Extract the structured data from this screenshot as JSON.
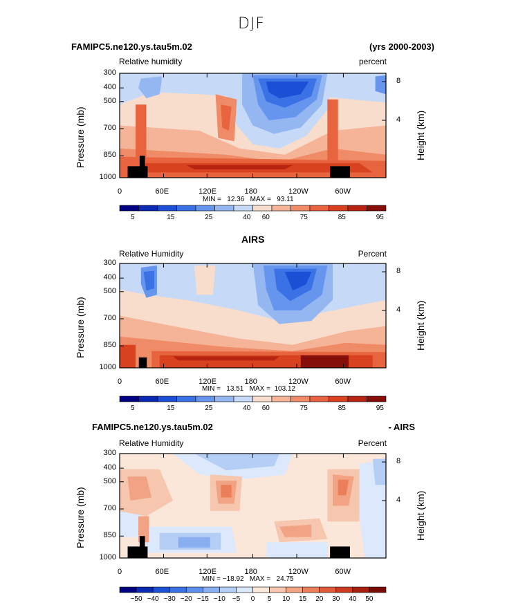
{
  "figure": {
    "title": "DJF",
    "season": "DJF"
  },
  "colors": {
    "levels": [
      "#000082",
      "#0a2ab4",
      "#1a4fd6",
      "#3a72e6",
      "#6695ee",
      "#94b7f2",
      "#c6daf8",
      "#f8dccc",
      "#f5b497",
      "#ef8c67",
      "#e8643e",
      "#d9421e",
      "#b72512",
      "#850e08"
    ],
    "diff_levels": [
      "#000082",
      "#0a2ab4",
      "#1a4fd6",
      "#3a72e6",
      "#5f8fed",
      "#8aaff1",
      "#b5cef6",
      "#dce8fb",
      "#fbe6da",
      "#f7c6ae",
      "#f2a383",
      "#ec7f5b",
      "#e25b39",
      "#cd3a20",
      "#a81f10",
      "#7a0c06"
    ]
  },
  "panels": [
    {
      "title_left": "FAMIPC5.ne120.ys.tau5m.02",
      "title_right": "(yrs 2000-2003)",
      "title_center": "",
      "var_label": "Relative humidity",
      "units": "percent",
      "y_left_label": "Pressure (mb)",
      "y_right_label": "Height (km)",
      "minmax": "MIN =   12.36   MAX =   93.11",
      "colorbar_labels": [
        "5",
        "15",
        "25",
        "40",
        "60",
        "75",
        "85",
        "95"
      ],
      "x_ticks": [
        "0",
        "60E",
        "120E",
        "180",
        "120W",
        "60W"
      ],
      "y_ticks": [
        "300",
        "400",
        "500",
        "700",
        "850",
        "1000"
      ],
      "h_ticks": [
        "8",
        "4"
      ]
    },
    {
      "title_left": "",
      "title_right": "",
      "title_center": "AIRS",
      "var_label": "Relative Humidity",
      "units": "Percent",
      "y_left_label": "Pressure (mb)",
      "y_right_label": "Height (km)",
      "minmax": "MIN =   13.51   MAX =  103.12",
      "colorbar_labels": [
        "5",
        "15",
        "25",
        "40",
        "60",
        "75",
        "85",
        "95"
      ],
      "x_ticks": [
        "0",
        "60E",
        "120E",
        "180",
        "120W",
        "60W"
      ],
      "y_ticks": [
        "300",
        "400",
        "500",
        "700",
        "850",
        "1000"
      ],
      "h_ticks": [
        "8",
        "4"
      ]
    },
    {
      "title_left": "FAMIPC5.ne120.ys.tau5m.02",
      "title_right": "- AIRS",
      "title_center": "",
      "var_label": "Relative Humidity",
      "units": "Percent",
      "y_left_label": "Pressure (mb)",
      "y_right_label": "Height (km)",
      "minmax": "MIN = −18.92   MAX =   24.75",
      "colorbar_labels": [
        "−50",
        "−40",
        "−30",
        "−20",
        "−15",
        "−10",
        "−5",
        "0",
        "5",
        "10",
        "15",
        "20",
        "30",
        "40",
        "50"
      ],
      "x_ticks": [
        "0",
        "60E",
        "120E",
        "180",
        "120W",
        "60W"
      ],
      "y_ticks": [
        "300",
        "400",
        "500",
        "700",
        "850",
        "1000"
      ],
      "h_ticks": [
        "8",
        "4"
      ]
    }
  ],
  "chart_data": [
    {
      "type": "heatmap",
      "title": "FAMIPC5.ne120.ys.tau5m.02 (yrs 2000-2003)",
      "variable": "Relative humidity",
      "units": "percent",
      "xlabel": "",
      "ylabel": "Pressure (mb)",
      "y2label": "Height (km)",
      "xlim": [
        0,
        360
      ],
      "ylim": [
        1000,
        300
      ],
      "x_ticks": [
        "0",
        "60E",
        "120E",
        "180",
        "120W",
        "60W"
      ],
      "y_ticks": [
        300,
        400,
        500,
        700,
        850,
        1000
      ],
      "levels": [
        5,
        10,
        15,
        20,
        25,
        30,
        40,
        50,
        60,
        70,
        75,
        80,
        85,
        90,
        95
      ],
      "min": 12.36,
      "max": 93.11
    },
    {
      "type": "heatmap",
      "title": "AIRS",
      "variable": "Relative Humidity",
      "units": "Percent",
      "xlabel": "",
      "ylabel": "Pressure (mb)",
      "y2label": "Height (km)",
      "xlim": [
        0,
        360
      ],
      "ylim": [
        1000,
        300
      ],
      "x_ticks": [
        "0",
        "60E",
        "120E",
        "180",
        "120W",
        "60W"
      ],
      "y_ticks": [
        300,
        400,
        500,
        700,
        850,
        1000
      ],
      "levels": [
        5,
        10,
        15,
        20,
        25,
        30,
        40,
        50,
        60,
        70,
        75,
        80,
        85,
        90,
        95
      ],
      "min": 13.51,
      "max": 103.12
    },
    {
      "type": "heatmap",
      "title": "FAMIPC5.ne120.ys.tau5m.02 - AIRS",
      "variable": "Relative Humidity",
      "units": "Percent",
      "xlabel": "",
      "ylabel": "Pressure (mb)",
      "y2label": "Height (km)",
      "xlim": [
        0,
        360
      ],
      "ylim": [
        1000,
        300
      ],
      "x_ticks": [
        "0",
        "60E",
        "120E",
        "180",
        "120W",
        "60W"
      ],
      "y_ticks": [
        300,
        400,
        500,
        700,
        850,
        1000
      ],
      "levels": [
        -50,
        -40,
        -30,
        -20,
        -15,
        -10,
        -5,
        0,
        5,
        10,
        15,
        20,
        30,
        40,
        50
      ],
      "min": -18.92,
      "max": 24.75
    }
  ]
}
